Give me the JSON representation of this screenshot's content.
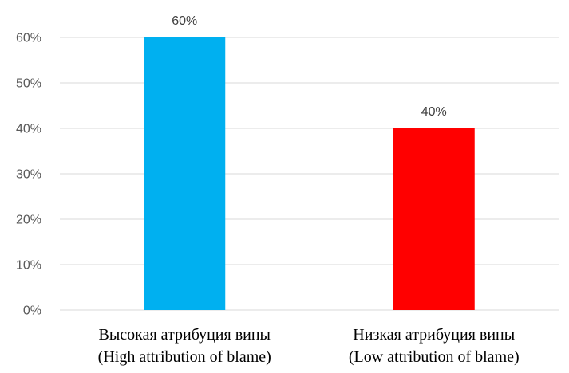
{
  "chart_data": {
    "type": "bar",
    "title": "",
    "xlabel": "",
    "ylabel": "",
    "ylim": [
      0,
      0.6
    ],
    "grid": true,
    "legend": "none",
    "yticks": [
      "0%",
      "10%",
      "20%",
      "30%",
      "40%",
      "50%",
      "60%"
    ],
    "categories": [
      [
        "Высокая атрибуция вины",
        "(High attribution of blame)"
      ],
      [
        "Низкая атрибуция вины",
        "(Low attribution of blame)"
      ]
    ],
    "values": [
      0.6,
      0.4
    ],
    "data_labels": [
      "60%",
      "40%"
    ],
    "colors": [
      "#00b0f0",
      "#ff0000"
    ]
  }
}
